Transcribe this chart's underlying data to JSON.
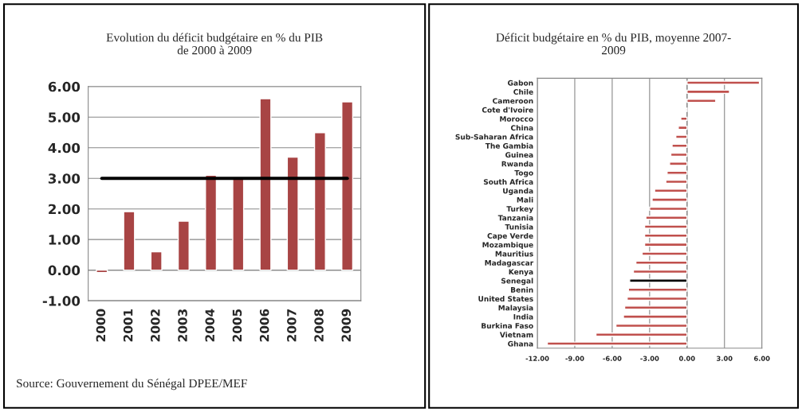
{
  "chart_data": [
    {
      "type": "bar",
      "title": "Evolution du déficit budgétaire en % du PIB\nde 2000 à 2009",
      "categories": [
        "2000",
        "2001",
        "2002",
        "2003",
        "2004",
        "2005",
        "2006",
        "2007",
        "2008",
        "2009"
      ],
      "series": [
        {
          "type": "bar",
          "color": "#a84444",
          "values": [
            -0.08,
            1.91,
            0.6,
            1.6,
            3.1,
            3.0,
            5.6,
            3.69,
            4.49,
            5.5
          ]
        },
        {
          "type": "line",
          "color": "#000000",
          "values": [
            3,
            3,
            3,
            3,
            3,
            3,
            3,
            3,
            3,
            3
          ]
        }
      ],
      "ylim": [
        -1,
        6
      ],
      "yticks": [
        {
          "value": -1,
          "label": "-1.00"
        },
        {
          "value": 0,
          "label": "0.00"
        },
        {
          "value": 1,
          "label": "1.00"
        },
        {
          "value": 2,
          "label": "2.00"
        },
        {
          "value": 3,
          "label": "3.00"
        },
        {
          "value": 4,
          "label": "4.00"
        },
        {
          "value": 5,
          "label": "5.00"
        },
        {
          "value": 6,
          "label": "6.00"
        }
      ],
      "grid": "y",
      "annotations": [
        "Source: Gouvernement du Sénégal DPEE/MEF"
      ]
    },
    {
      "type": "bar",
      "orientation": "horizontal",
      "title": "Déficit budgétaire en % du PIB, moyenne 2007-\n2009",
      "categories": [
        "Gabon",
        "Chile",
        "Cameroon",
        "Cote d'Ivoire",
        "Morocco",
        "China",
        "Sub-Saharan Africa",
        "The Gambia",
        "Guinea",
        "Rwanda",
        "Togo",
        "South Africa",
        "Uganda",
        "Mali",
        "Turkey",
        "Tanzania",
        "Tunisia",
        "Cape Verde",
        "Mozambique",
        "Mauritius",
        "Madagascar",
        "Kenya",
        "Senegal",
        "Benin",
        "United States",
        "Malaysia",
        "India",
        "Burkina Faso",
        "Vietnam",
        "Ghana"
      ],
      "values": [
        5.8,
        3.4,
        2.3,
        -0.1,
        -0.5,
        -0.7,
        -0.9,
        -1.2,
        -1.3,
        -1.4,
        -1.6,
        -1.7,
        -2.6,
        -2.8,
        -3.0,
        -3.3,
        -3.4,
        -3.4,
        -3.4,
        -3.6,
        -4.1,
        -4.3,
        -4.6,
        -4.7,
        -4.8,
        -5.0,
        -5.1,
        -5.7,
        -7.3,
        -11.2
      ],
      "colors": [
        "#c0504d",
        "#c0504d",
        "#c0504d",
        "#c0504d",
        "#c0504d",
        "#c0504d",
        "#c0504d",
        "#c0504d",
        "#c0504d",
        "#c0504d",
        "#c0504d",
        "#c0504d",
        "#c0504d",
        "#c0504d",
        "#c0504d",
        "#c0504d",
        "#c0504d",
        "#c0504d",
        "#c0504d",
        "#c0504d",
        "#c0504d",
        "#c0504d",
        "#000000",
        "#c0504d",
        "#c0504d",
        "#c0504d",
        "#c0504d",
        "#c0504d",
        "#c0504d",
        "#c0504d"
      ],
      "xlim": [
        -12,
        6
      ],
      "xticks": [
        {
          "value": -12,
          "label": "-12.00"
        },
        {
          "value": -9,
          "label": "-9.00"
        },
        {
          "value": -6,
          "label": "-6.00"
        },
        {
          "value": -3,
          "label": "-3.00"
        },
        {
          "value": 0,
          "label": "0.00"
        },
        {
          "value": 3,
          "label": "3.00"
        },
        {
          "value": 6,
          "label": "6.00"
        }
      ],
      "grid": "x"
    }
  ]
}
